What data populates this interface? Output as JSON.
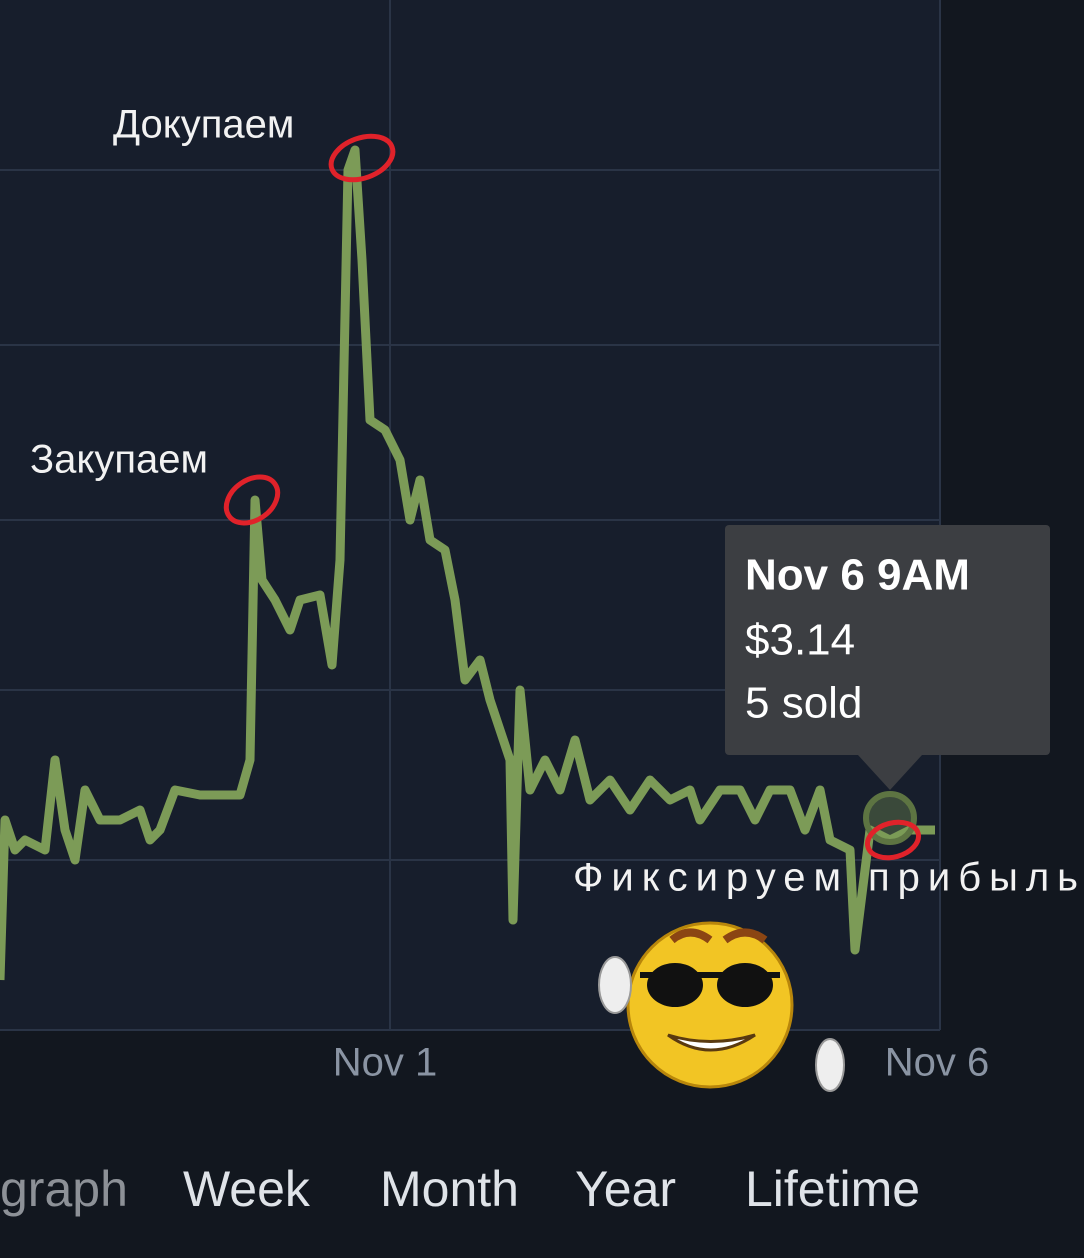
{
  "annotations": [
    "Докупаем",
    "Закупаем",
    "Фиксируем прибыль"
  ],
  "tooltip": {
    "date": "Nov 6 9AM",
    "price": "$3.14",
    "sold": "5 sold"
  },
  "x_labels": [
    "Nov 1",
    "Nov 6"
  ],
  "tabs": [
    "graph",
    "Week",
    "Month",
    "Year",
    "Lifetime"
  ]
}
